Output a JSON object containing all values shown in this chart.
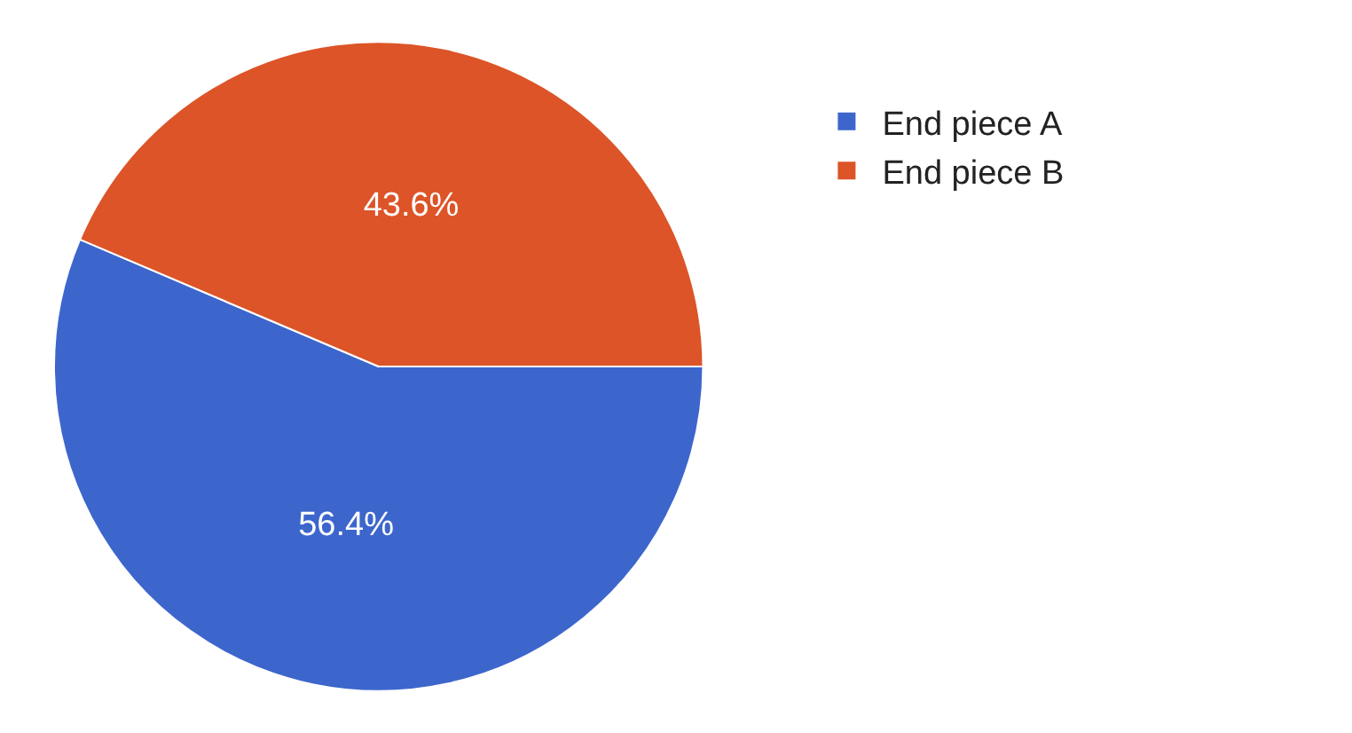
{
  "chart_data": {
    "type": "pie",
    "categories": [
      "End piece A",
      "End piece B"
    ],
    "values": [
      56.4,
      43.6
    ],
    "value_labels": [
      "56.4%",
      "43.6%"
    ],
    "colors": [
      "#3d66cc",
      "#dc5427"
    ],
    "legend": "top right"
  }
}
